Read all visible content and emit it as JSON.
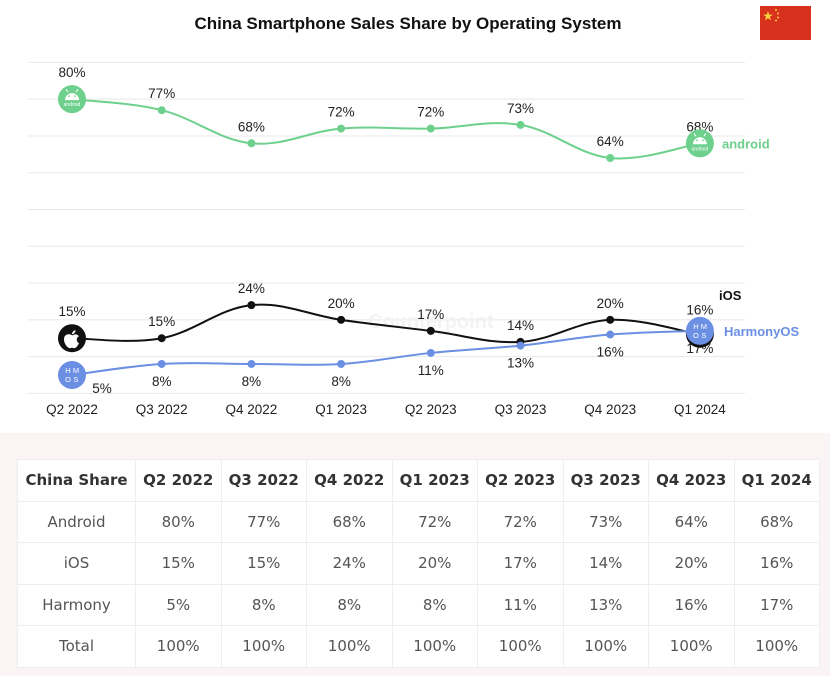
{
  "chart_data": {
    "type": "line",
    "title": "China Smartphone Sales Share by Operating System",
    "categories": [
      "Q2 2022",
      "Q3 2022",
      "Q4 2022",
      "Q1 2023",
      "Q2 2023",
      "Q3 2023",
      "Q4 2023",
      "Q1 2024"
    ],
    "series": [
      {
        "name": "android",
        "color": "#6dd08c",
        "values": [
          80,
          77,
          68,
          72,
          72,
          73,
          64,
          68
        ]
      },
      {
        "name": "iOS",
        "color": "#111111",
        "values": [
          15,
          15,
          24,
          20,
          17,
          14,
          20,
          16
        ]
      },
      {
        "name": "HarmonyOS",
        "color": "#6a8fe3",
        "values": [
          5,
          8,
          8,
          8,
          11,
          13,
          16,
          17
        ]
      }
    ],
    "ylim": [
      0,
      100
    ],
    "grid": true,
    "unit": "%",
    "watermark": "Counterpoint",
    "flag": "China"
  },
  "table": {
    "headers": [
      "China Share",
      "Q2 2022",
      "Q3 2022",
      "Q4 2022",
      "Q1 2023",
      "Q2 2023",
      "Q3 2023",
      "Q4 2023",
      "Q1 2024"
    ],
    "rows": [
      [
        "Android",
        "80%",
        "77%",
        "68%",
        "72%",
        "72%",
        "73%",
        "64%",
        "68%"
      ],
      [
        "iOS",
        "15%",
        "15%",
        "24%",
        "20%",
        "17%",
        "14%",
        "20%",
        "16%"
      ],
      [
        "Harmony",
        "5%",
        "8%",
        "8%",
        "8%",
        "11%",
        "13%",
        "16%",
        "17%"
      ],
      [
        "Total",
        "100%",
        "100%",
        "100%",
        "100%",
        "100%",
        "100%",
        "100%",
        "100%"
      ]
    ]
  },
  "icons": {
    "android": "android-logo-icon",
    "ios": "apple-logo-icon",
    "harmony": "hmos-logo-icon",
    "harmony_text": [
      "H",
      "M",
      "O",
      "S"
    ],
    "android_text": "android"
  }
}
